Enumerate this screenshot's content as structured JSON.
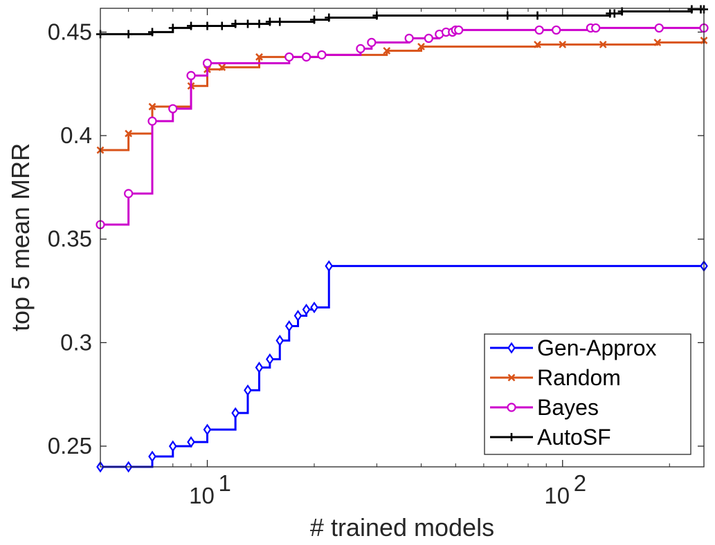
{
  "chart_data": {
    "type": "line",
    "xscale": "log",
    "xlabel": "# trained models",
    "ylabel": "top 5 mean MRR",
    "xlim": [
      5,
      250
    ],
    "ylim": [
      0.24,
      0.4615
    ],
    "x_ticks": [
      {
        "value": 10,
        "base": "10",
        "exp": "1"
      },
      {
        "value": 100,
        "base": "10",
        "exp": "2"
      }
    ],
    "y_ticks": [
      {
        "value": 0.25,
        "label": "0.25"
      },
      {
        "value": 0.3,
        "label": "0.3"
      },
      {
        "value": 0.35,
        "label": "0.35"
      },
      {
        "value": 0.4,
        "label": "0.4"
      },
      {
        "value": 0.45,
        "label": "0.45"
      }
    ],
    "legend_position": "bottom-right",
    "series": [
      {
        "name": "Gen-Approx",
        "color": "#0000ff",
        "marker": "diamond",
        "x": [
          5,
          6,
          7,
          8,
          9,
          10,
          12,
          13,
          14,
          15,
          16,
          17,
          18,
          19,
          20,
          22,
          250
        ],
        "y": [
          0.24,
          0.24,
          0.245,
          0.25,
          0.252,
          0.258,
          0.266,
          0.277,
          0.288,
          0.292,
          0.301,
          0.308,
          0.313,
          0.316,
          0.317,
          0.337,
          0.337
        ]
      },
      {
        "name": "Random",
        "color": "#d95319",
        "marker": "x",
        "x": [
          5,
          6,
          7,
          9,
          10,
          11,
          14,
          21,
          32,
          40,
          85,
          100,
          130,
          185,
          250
        ],
        "y": [
          0.393,
          0.401,
          0.414,
          0.424,
          0.432,
          0.433,
          0.438,
          0.439,
          0.441,
          0.443,
          0.444,
          0.444,
          0.444,
          0.445,
          0.446
        ]
      },
      {
        "name": "Bayes",
        "color": "#cc00cc",
        "marker": "circle",
        "x": [
          5,
          6,
          7,
          8,
          9,
          10,
          17,
          19,
          21,
          27,
          29,
          37,
          42,
          45,
          47,
          49,
          50,
          51,
          86,
          96,
          120,
          124,
          187,
          250
        ],
        "y": [
          0.357,
          0.372,
          0.407,
          0.413,
          0.429,
          0.435,
          0.438,
          0.438,
          0.439,
          0.442,
          0.445,
          0.447,
          0.447,
          0.449,
          0.45,
          0.45,
          0.451,
          0.451,
          0.451,
          0.451,
          0.452,
          0.452,
          0.452,
          0.452
        ]
      },
      {
        "name": "AutoSF",
        "color": "#000000",
        "marker": "plus",
        "x": [
          5,
          6,
          7,
          8,
          9,
          10,
          11,
          12,
          13,
          14,
          15,
          16,
          20,
          22,
          30,
          70,
          85,
          136,
          140,
          147,
          231,
          245,
          250
        ],
        "y": [
          0.449,
          0.449,
          0.45,
          0.452,
          0.453,
          0.453,
          0.453,
          0.454,
          0.454,
          0.454,
          0.455,
          0.455,
          0.456,
          0.457,
          0.458,
          0.458,
          0.458,
          0.459,
          0.459,
          0.46,
          0.461,
          0.461,
          0.461
        ]
      }
    ]
  }
}
